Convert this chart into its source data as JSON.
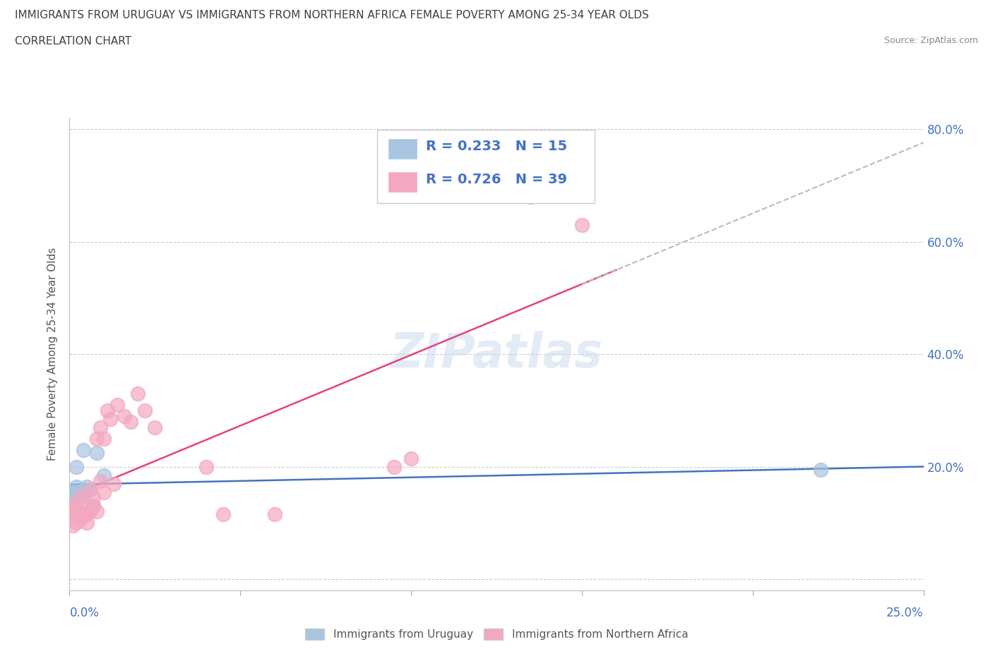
{
  "title": "IMMIGRANTS FROM URUGUAY VS IMMIGRANTS FROM NORTHERN AFRICA FEMALE POVERTY AMONG 25-34 YEAR OLDS",
  "subtitle": "CORRELATION CHART",
  "source": "Source: ZipAtlas.com",
  "xlabel_bottom_left": "0.0%",
  "xlabel_bottom_right": "25.0%",
  "ylabel": "Female Poverty Among 25-34 Year Olds",
  "xlim": [
    0.0,
    0.25
  ],
  "ylim": [
    -0.02,
    0.82
  ],
  "yticks": [
    0.0,
    0.2,
    0.4,
    0.6,
    0.8
  ],
  "ytick_labels": [
    "",
    "20.0%",
    "40.0%",
    "60.0%",
    "80.0%"
  ],
  "series1": {
    "name": "Immigrants from Uruguay",
    "R": 0.233,
    "N": 15,
    "color": "#a8c4e0",
    "line_color": "#4472c4",
    "x": [
      0.001,
      0.001,
      0.002,
      0.002,
      0.002,
      0.003,
      0.003,
      0.004,
      0.004,
      0.005,
      0.006,
      0.007,
      0.008,
      0.01,
      0.22
    ],
    "y": [
      0.155,
      0.145,
      0.165,
      0.155,
      0.2,
      0.145,
      0.155,
      0.15,
      0.23,
      0.165,
      0.16,
      0.13,
      0.225,
      0.185,
      0.195
    ]
  },
  "series2": {
    "name": "Immigrants from Northern Africa",
    "R": 0.726,
    "N": 39,
    "color": "#f4a8c0",
    "line_color": "#e84080",
    "x": [
      0.001,
      0.001,
      0.001,
      0.002,
      0.002,
      0.002,
      0.003,
      0.003,
      0.003,
      0.004,
      0.004,
      0.005,
      0.005,
      0.006,
      0.006,
      0.007,
      0.007,
      0.008,
      0.008,
      0.009,
      0.009,
      0.01,
      0.01,
      0.011,
      0.012,
      0.013,
      0.014,
      0.016,
      0.018,
      0.02,
      0.022,
      0.025,
      0.04,
      0.045,
      0.06,
      0.095,
      0.1,
      0.135,
      0.15
    ],
    "y": [
      0.13,
      0.115,
      0.095,
      0.13,
      0.115,
      0.1,
      0.105,
      0.12,
      0.145,
      0.115,
      0.13,
      0.1,
      0.115,
      0.12,
      0.16,
      0.13,
      0.145,
      0.12,
      0.25,
      0.175,
      0.27,
      0.155,
      0.25,
      0.3,
      0.285,
      0.17,
      0.31,
      0.29,
      0.28,
      0.33,
      0.3,
      0.27,
      0.2,
      0.115,
      0.115,
      0.2,
      0.215,
      0.68,
      0.63
    ]
  },
  "watermark": "ZIPatlas",
  "background_color": "#ffffff",
  "grid_color": "#cccccc",
  "title_color": "#404040",
  "axis_label_color": "#4472c4"
}
